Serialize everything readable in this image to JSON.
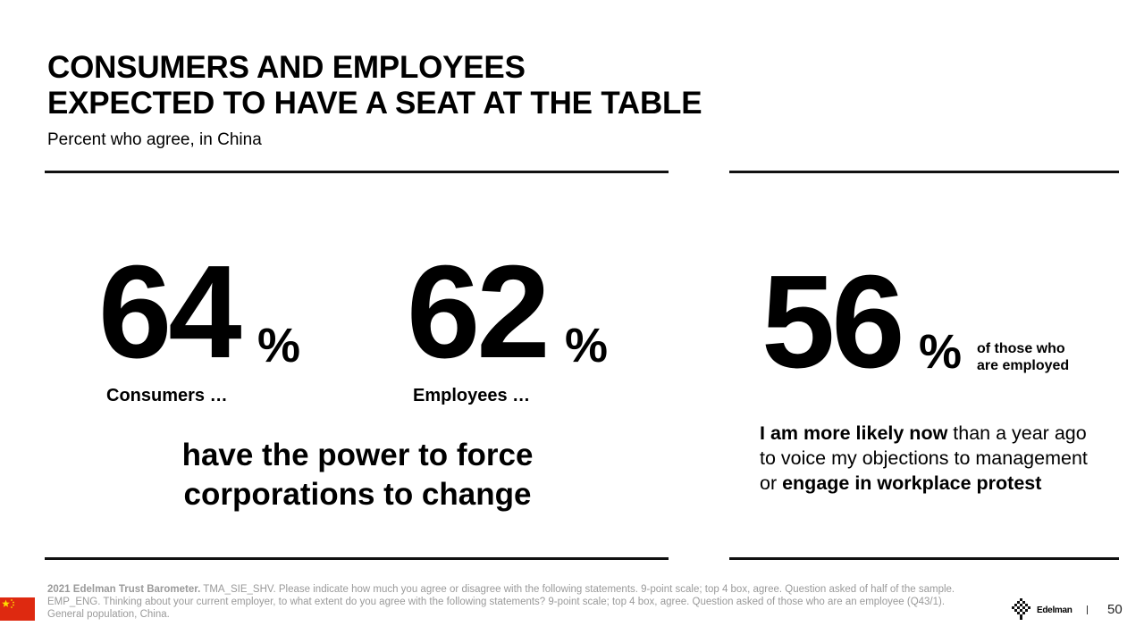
{
  "header": {
    "title_line1": "CONSUMERS AND EMPLOYEES",
    "title_line2": "EXPECTED TO HAVE A SEAT AT THE TABLE",
    "subtitle": "Percent who agree, in China"
  },
  "stats": {
    "consumers": {
      "value": "64",
      "unit": "%",
      "label": "Consumers …"
    },
    "employees": {
      "value": "62",
      "unit": "%",
      "label": "Employees …"
    },
    "statement": {
      "line1": "have the power to force",
      "line2": "corporations to change"
    },
    "employed": {
      "value": "56",
      "unit": "%",
      "qualifier_line1": "of those who",
      "qualifier_line2": "are employed",
      "text_bold1": "I am more likely now",
      "text_plain1": " than a year ago to voice my objections to management or ",
      "text_bold2": "engage in workplace protest"
    }
  },
  "footer": {
    "source_bold": "2021 Edelman Trust Barometer.",
    "source_text": " TMA_SIE_SHV. Please indicate how much you agree or disagree with the following statements. 9-point scale; top 4 box, agree. Question asked of half of the sample. EMP_ENG. Thinking about your current employer, to what extent do you agree with the following statements? 9-point scale; top 4 box, agree. Question asked of those who are an employee (Q43/1). General population, China.",
    "brand": "Edelman",
    "page_number": "50",
    "flag_icon": "china-flag-icon",
    "logo_icon": "edelman-logo-icon"
  },
  "colors": {
    "flag_red": "#de2910",
    "flag_star": "#ffde00",
    "footnote_gray": "#9a9a9a"
  }
}
